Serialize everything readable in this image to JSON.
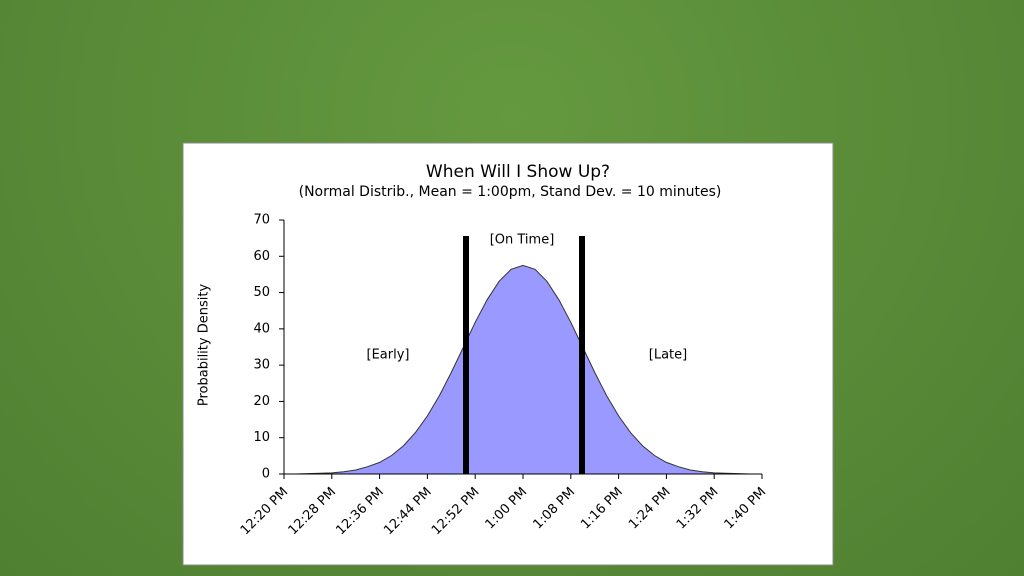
{
  "chart_data": {
    "type": "area",
    "title": "When Will I Show Up?",
    "subtitle": "(Normal Distrib., Mean = 1:00pm, Stand Dev. = 10 minutes)",
    "y_label": "Probability Density",
    "annotations": [
      "[Early]",
      "[On Time]",
      "[Late]"
    ],
    "categories": [
      "12:20 PM",
      null,
      null,
      null,
      "12:28 PM",
      null,
      null,
      null,
      "12:36 PM",
      null,
      null,
      null,
      "12:44 PM",
      null,
      null,
      null,
      "12:52 PM",
      null,
      null,
      null,
      "1:00 PM",
      null,
      null,
      null,
      "1:08 PM",
      null,
      null,
      null,
      "1:16 PM",
      null,
      null,
      null,
      "1:24 PM",
      null,
      null,
      null,
      "1:32 PM",
      null,
      null,
      null,
      "1:40 PM"
    ],
    "values": [
      0.0,
      0.0,
      0.1,
      0.2,
      0.3,
      0.6,
      1.1,
      2.0,
      3.2,
      5.1,
      7.8,
      11.4,
      16.0,
      21.6,
      28.0,
      34.9,
      41.8,
      48.0,
      53.1,
      56.4,
      57.5,
      56.4,
      53.1,
      48.0,
      41.8,
      34.9,
      28.0,
      21.6,
      16.0,
      11.4,
      7.8,
      5.1,
      3.2,
      2.0,
      1.1,
      0.6,
      0.3,
      0.2,
      0.1,
      0.0,
      0.0
    ],
    "color": "#9999ff",
    "ylim": [
      0,
      70
    ],
    "yticks": [
      0,
      10,
      20,
      30,
      40,
      50,
      60,
      70
    ]
  }
}
